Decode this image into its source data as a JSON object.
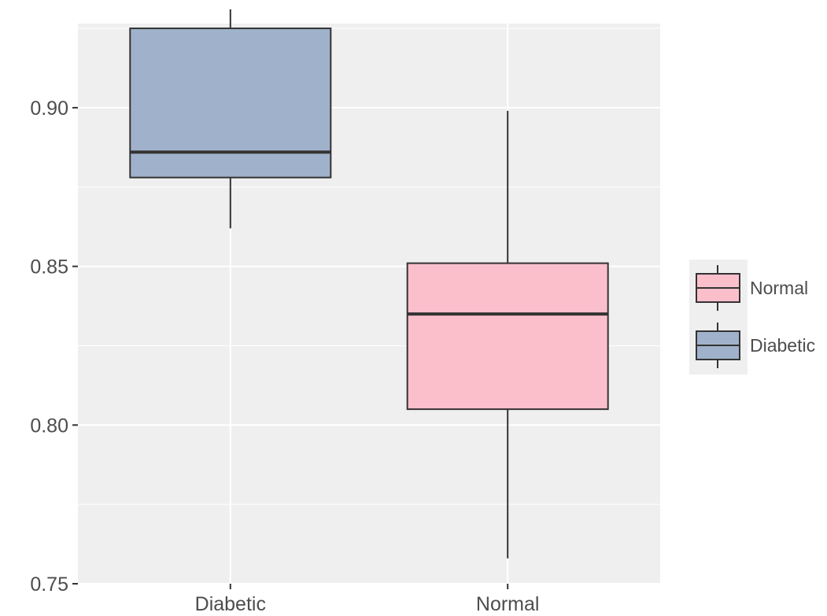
{
  "chart_data": {
    "type": "boxplot",
    "title": "",
    "xlabel": "",
    "ylabel": "",
    "ylim": [
      0.75,
      0.9265
    ],
    "y_ticks": [
      "0.75",
      "0.80",
      "0.85",
      "0.90"
    ],
    "y_tick_values": [
      0.75,
      0.8,
      0.85,
      0.9
    ],
    "y_minor_ticks": [
      0.775,
      0.825,
      0.875,
      0.925
    ],
    "grid": true,
    "categories": [
      "Diabetic",
      "Normal"
    ],
    "series": [
      {
        "name": "Diabetic",
        "color": "#a0b2cb",
        "min": 0.862,
        "q1": 0.878,
        "median": 0.886,
        "q3": 0.925,
        "max": 0.931
      },
      {
        "name": "Normal",
        "color": "#fbbfcc",
        "min": 0.758,
        "q1": 0.805,
        "median": 0.835,
        "q3": 0.851,
        "max": 0.899
      }
    ],
    "legend": {
      "placement": "right",
      "items": [
        {
          "label": "Normal",
          "color": "#fbbfcc"
        },
        {
          "label": "Diabetic",
          "color": "#a0b2cb"
        }
      ]
    }
  }
}
